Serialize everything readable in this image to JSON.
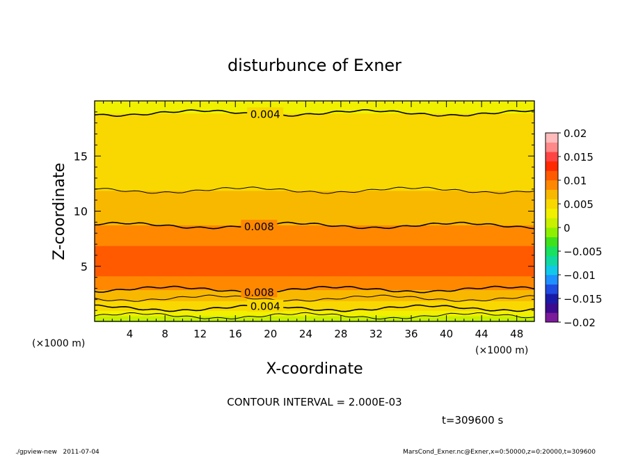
{
  "chart_data": {
    "type": "heatmap",
    "title": "disturbunce of Exner",
    "xlabel": "X-coordinate",
    "ylabel": "Z-coordinate",
    "x_unit": "(×1000 m)",
    "y_unit": "(×1000 m)",
    "xlim": [
      0,
      50
    ],
    "ylim": [
      0,
      20
    ],
    "x_ticks": [
      4,
      8,
      12,
      16,
      20,
      24,
      28,
      32,
      36,
      40,
      44,
      48
    ],
    "y_ticks": [
      5,
      10,
      15
    ],
    "colorbar": {
      "ticks": [
        0.02,
        0.015,
        0.01,
        0.005,
        0,
        -0.005,
        -0.01,
        -0.015,
        -0.02
      ],
      "tick_labels": [
        "0.02",
        "0.015",
        "0.01",
        "0.005",
        "0",
        "−0.005",
        "−0.01",
        "−0.015",
        "−0.02"
      ],
      "range": [
        -0.02,
        0.02
      ],
      "colors": [
        "#7b1a9a",
        "#3b0a8f",
        "#1a1aa8",
        "#1e4be0",
        "#1e90ff",
        "#12c8e8",
        "#10d8a0",
        "#18e060",
        "#3ee11c",
        "#8ef000",
        "#c8f000",
        "#f0f000",
        "#f8d800",
        "#f8b800",
        "#ff8800",
        "#ff5a00",
        "#ff2a00",
        "#ff4444",
        "#ff8888",
        "#ffbbbb"
      ]
    },
    "field_profile_by_z": [
      {
        "z": 0.0,
        "value": -0.0005
      },
      {
        "z": 0.4,
        "value": 0.0015
      },
      {
        "z": 0.8,
        "value": 0.0035
      },
      {
        "z": 1.3,
        "value": 0.0045
      },
      {
        "z": 1.8,
        "value": 0.0058
      },
      {
        "z": 2.3,
        "value": 0.0068
      },
      {
        "z": 2.9,
        "value": 0.008
      },
      {
        "z": 3.5,
        "value": 0.0093
      },
      {
        "z": 4.5,
        "value": 0.0104
      },
      {
        "z": 5.5,
        "value": 0.0106
      },
      {
        "z": 6.5,
        "value": 0.0103
      },
      {
        "z": 7.3,
        "value": 0.0096
      },
      {
        "z": 8.7,
        "value": 0.008
      },
      {
        "z": 10.5,
        "value": 0.0068
      },
      {
        "z": 11.9,
        "value": 0.006
      },
      {
        "z": 13.5,
        "value": 0.0053
      },
      {
        "z": 15.0,
        "value": 0.0048
      },
      {
        "z": 17.0,
        "value": 0.0043
      },
      {
        "z": 18.9,
        "value": 0.004
      },
      {
        "z": 20.0,
        "value": 0.0038
      }
    ],
    "contour_lines": [
      {
        "level": 0.002,
        "z": 0.5,
        "label": ""
      },
      {
        "level": 0.004,
        "z": 1.2,
        "label": "0.004"
      },
      {
        "level": 0.006,
        "z": 2.1,
        "label": ""
      },
      {
        "level": 0.008,
        "z": 2.9,
        "label": "0.008"
      },
      {
        "level": 0.008,
        "z": 8.7,
        "label": "0.008"
      },
      {
        "level": 0.006,
        "z": 11.9,
        "label": ""
      },
      {
        "level": 0.004,
        "z": 18.9,
        "label": "0.004"
      }
    ],
    "contour_interval": "CONTOUR INTERVAL = 2.000E-03",
    "time_label": "t=309600 s"
  },
  "footer": {
    "left": "./gpview-new   2011-07-04",
    "right": "MarsCond_Exner.nc@Exner,x=0:50000,z=0:20000,t=309600"
  }
}
